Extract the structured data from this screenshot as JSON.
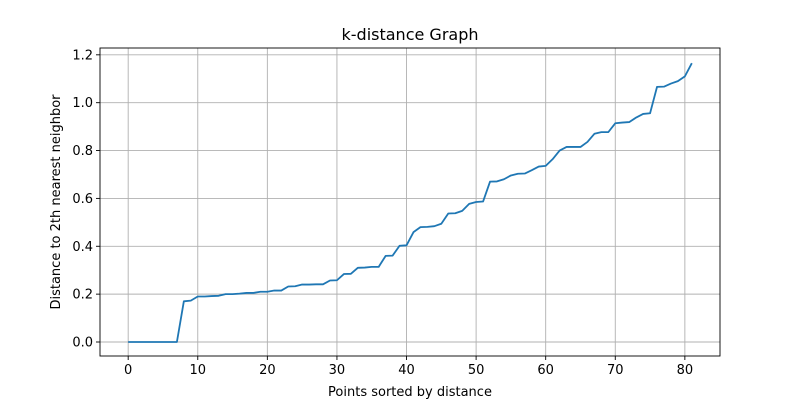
{
  "chart_data": {
    "type": "line",
    "title": "k-distance Graph",
    "xlabel": "Points sorted by distance",
    "ylabel": "Distance to 2th nearest neighbor",
    "xlim": [
      -4.05,
      85.05
    ],
    "ylim": [
      -0.0585,
      1.2285
    ],
    "x_ticks": [
      0,
      10,
      20,
      30,
      40,
      50,
      60,
      70,
      80
    ],
    "y_ticks": [
      0.0,
      0.2,
      0.4,
      0.6,
      0.8,
      1.0,
      1.2
    ],
    "x_tick_labels": [
      "0",
      "10",
      "20",
      "30",
      "40",
      "50",
      "60",
      "70",
      "80"
    ],
    "y_tick_labels": [
      "0.0",
      "0.2",
      "0.4",
      "0.6",
      "0.8",
      "1.0",
      "1.2"
    ],
    "grid": true,
    "series": [
      {
        "color": "#1f77b4",
        "x": [
          0,
          1,
          2,
          3,
          4,
          5,
          6,
          7,
          8,
          9,
          10,
          11,
          12,
          13,
          14,
          15,
          16,
          17,
          18,
          19,
          20,
          21,
          22,
          23,
          24,
          25,
          26,
          27,
          28,
          29,
          30,
          31,
          32,
          33,
          34,
          35,
          36,
          37,
          38,
          39,
          40,
          41,
          42,
          43,
          44,
          45,
          46,
          47,
          48,
          49,
          50,
          51,
          52,
          53,
          54,
          55,
          56,
          57,
          58,
          59,
          60,
          61,
          62,
          63,
          64,
          65,
          66,
          67,
          68,
          69,
          70,
          71,
          72,
          73,
          74,
          75,
          76,
          77,
          78,
          79,
          80,
          81
        ],
        "values": [
          0,
          0,
          0,
          0,
          0,
          0,
          0,
          0,
          0.17,
          0.173,
          0.19,
          0.19,
          0.192,
          0.193,
          0.2,
          0.2,
          0.202,
          0.205,
          0.205,
          0.21,
          0.21,
          0.215,
          0.215,
          0.232,
          0.233,
          0.24,
          0.24,
          0.241,
          0.241,
          0.257,
          0.258,
          0.284,
          0.285,
          0.31,
          0.311,
          0.314,
          0.314,
          0.36,
          0.361,
          0.402,
          0.404,
          0.459,
          0.48,
          0.481,
          0.484,
          0.494,
          0.537,
          0.538,
          0.548,
          0.577,
          0.585,
          0.587,
          0.67,
          0.671,
          0.68,
          0.696,
          0.703,
          0.704,
          0.718,
          0.733,
          0.736,
          0.764,
          0.8,
          0.815,
          0.815,
          0.815,
          0.836,
          0.87,
          0.877,
          0.877,
          0.914,
          0.917,
          0.919,
          0.938,
          0.953,
          0.956,
          1.066,
          1.067,
          1.08,
          1.09,
          1.11,
          1.165
        ]
      }
    ]
  }
}
